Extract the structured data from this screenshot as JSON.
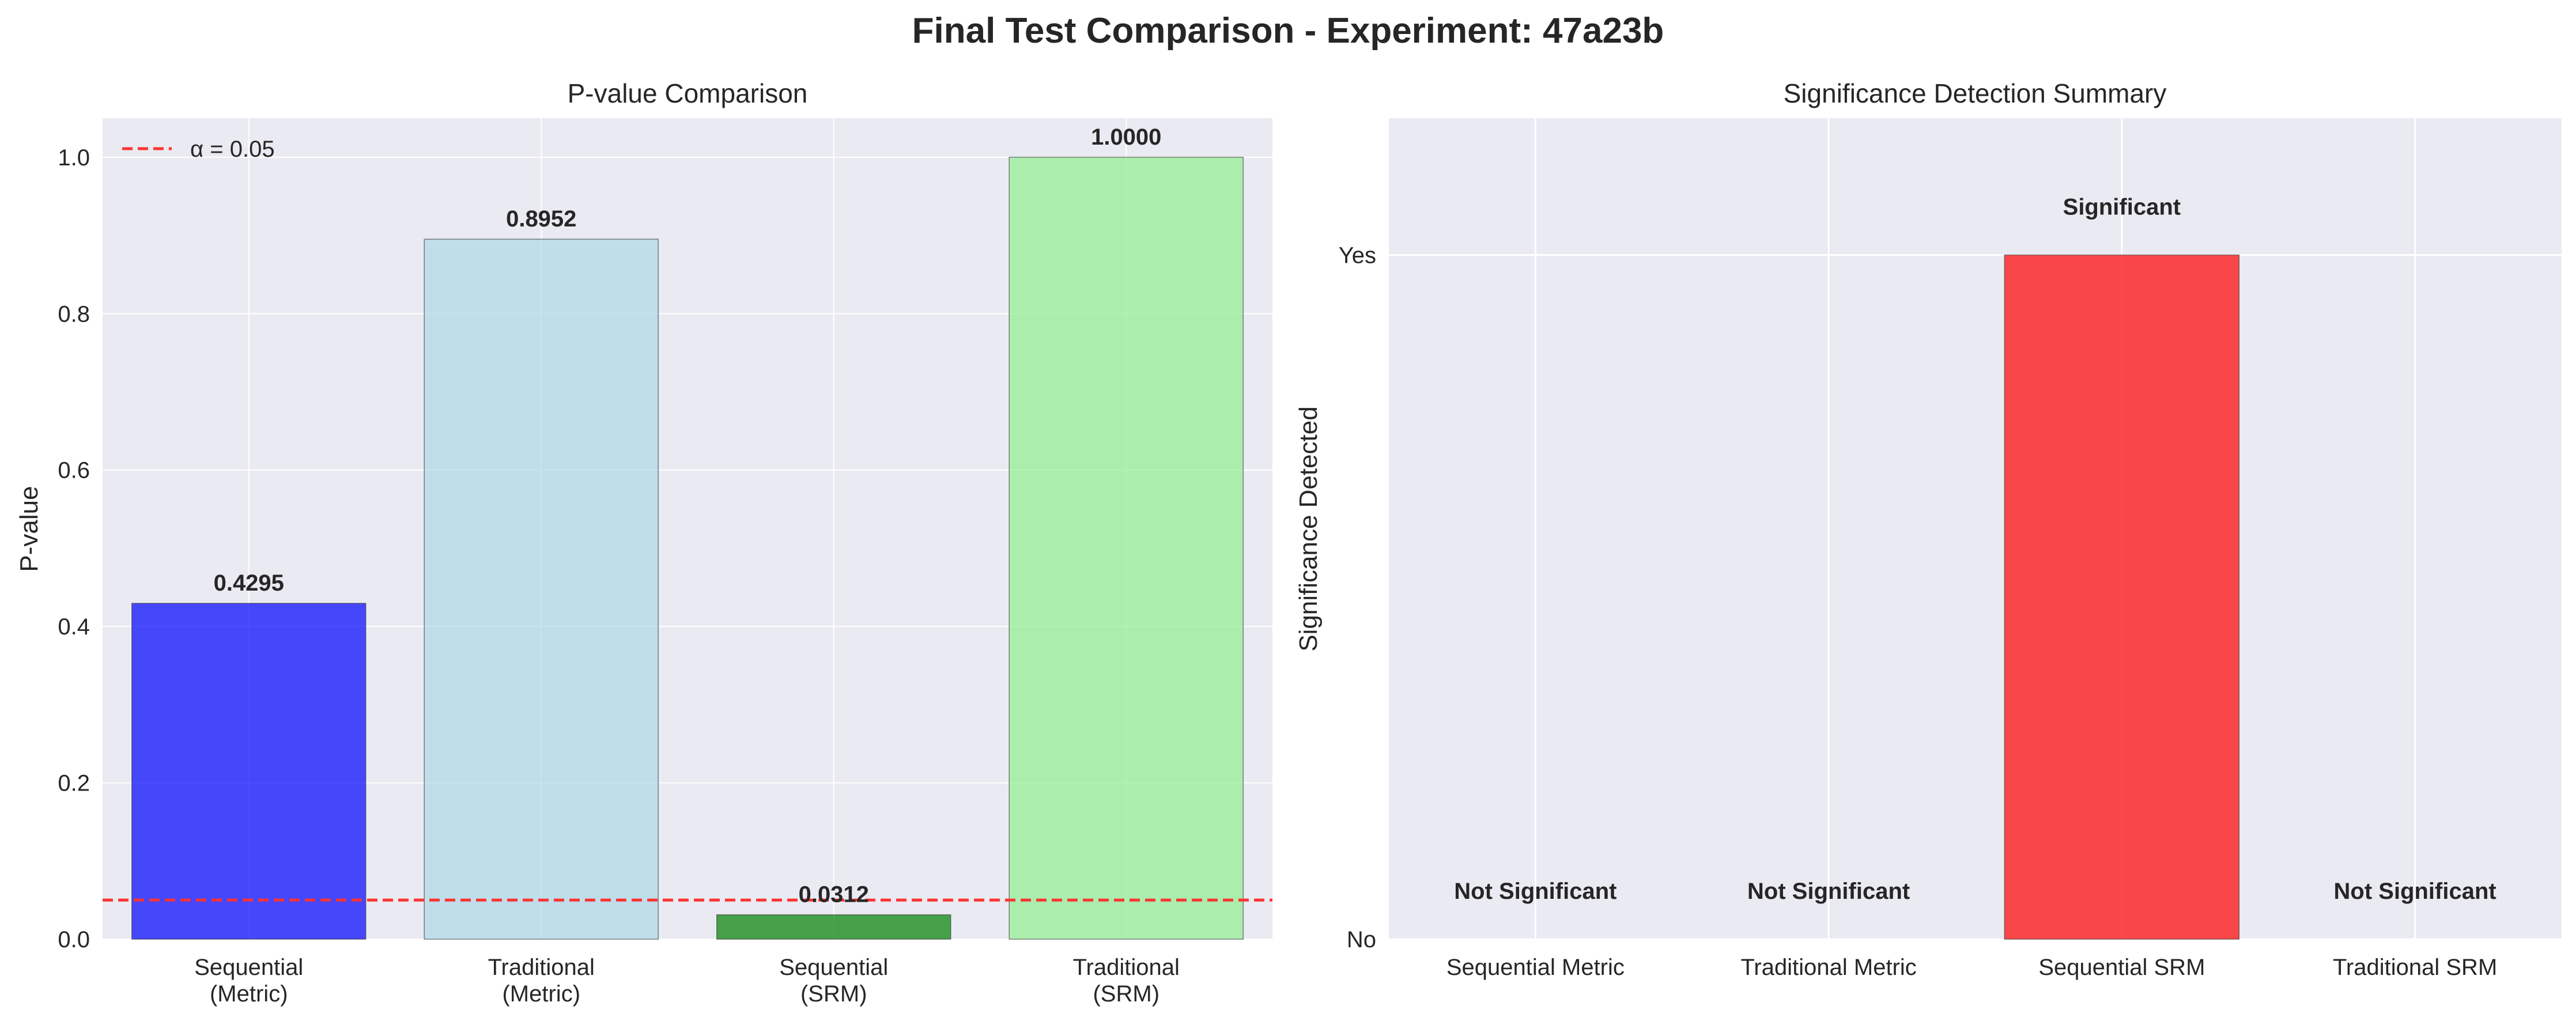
{
  "figure": {
    "title": "Final Test Comparison - Experiment: 47a23b"
  },
  "colors": {
    "axes_bg": "#eaeaf2",
    "grid": "#ffffff",
    "blue": "#0000ff",
    "lightblue": "#add8e6",
    "green": "#008000",
    "lightgreen": "#90ee90",
    "red": "#ff0000",
    "alpha_line": "#ff3333"
  },
  "chart_data": [
    {
      "type": "bar",
      "title": "P-value Comparison",
      "xlabel": "",
      "ylabel": "P-value",
      "categories": [
        "Sequential\n(Metric)",
        "Traditional\n(Metric)",
        "Sequential\n(SRM)",
        "Traditional\n(SRM)"
      ],
      "values": [
        0.4295,
        0.8952,
        0.0312,
        1.0
      ],
      "value_labels": [
        "0.4295",
        "0.8952",
        "0.0312",
        "1.0000"
      ],
      "bar_colors": [
        "#0000ff",
        "#add8e6",
        "#008000",
        "#90ee90"
      ],
      "ylim": [
        0,
        1.05
      ],
      "yticks": [
        0.0,
        0.2,
        0.4,
        0.6,
        0.8,
        1.0
      ],
      "ytick_labels": [
        "0.0",
        "0.2",
        "0.4",
        "0.6",
        "0.8",
        "1.0"
      ],
      "reference_line": {
        "y": 0.05,
        "label": "α = 0.05",
        "style": "dashed"
      },
      "legend": {
        "entries": [
          "α = 0.05"
        ],
        "placement": "top-left"
      },
      "grid": true
    },
    {
      "type": "bar",
      "title": "Significance Detection Summary",
      "xlabel": "",
      "ylabel": "Significance Detected",
      "categories": [
        "Sequential Metric",
        "Traditional Metric",
        "Sequential SRM",
        "Traditional SRM"
      ],
      "values": [
        0,
        0,
        1,
        0
      ],
      "value_labels": [
        "Not Significant",
        "Not Significant",
        "Significant",
        "Not Significant"
      ],
      "bar_colors": [
        "#ff0000",
        "#ff0000",
        "#ff0000",
        "#ff0000"
      ],
      "ylim": [
        0,
        1.2
      ],
      "yticks": [
        0,
        1
      ],
      "ytick_labels": [
        "No",
        "Yes"
      ],
      "grid": true
    }
  ]
}
